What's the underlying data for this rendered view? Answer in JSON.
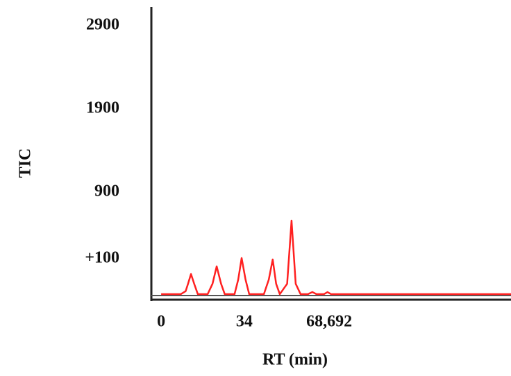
{
  "chart_data": {
    "type": "line",
    "xlabel": "RT (min)",
    "ylabel": "TIC",
    "x": [
      0,
      8,
      10,
      11,
      12.2,
      13.5,
      15,
      19,
      21,
      22.7,
      24.5,
      26,
      30,
      31.5,
      32.9,
      34.5,
      36,
      42,
      44,
      45.6,
      47,
      48.5,
      51.5,
      53.3,
      55,
      57,
      60,
      61.8,
      63.5,
      66.5,
      68,
      69.5,
      72,
      143
    ],
    "series": [
      {
        "color": "#ff2020",
        "values": [
          -325,
          -325,
          -290,
          -200,
          -83,
          -200,
          -325,
          -325,
          -200,
          9,
          -200,
          -325,
          -325,
          -150,
          109,
          -150,
          -325,
          -325,
          -150,
          92,
          -200,
          -325,
          -200,
          559,
          -200,
          -325,
          -325,
          -300,
          -325,
          -325,
          -300,
          -325,
          -325,
          -325
        ]
      }
    ],
    "xlim": [
      -4,
      143
    ],
    "ylim": [
      -358,
      3125
    ],
    "xticks": [
      0,
      34,
      {
        "value": 68.692,
        "label": "68,692"
      }
    ],
    "yticks": [
      {
        "value": 100,
        "label": "+100"
      },
      900,
      1900,
      2900
    ],
    "grid": false
  }
}
